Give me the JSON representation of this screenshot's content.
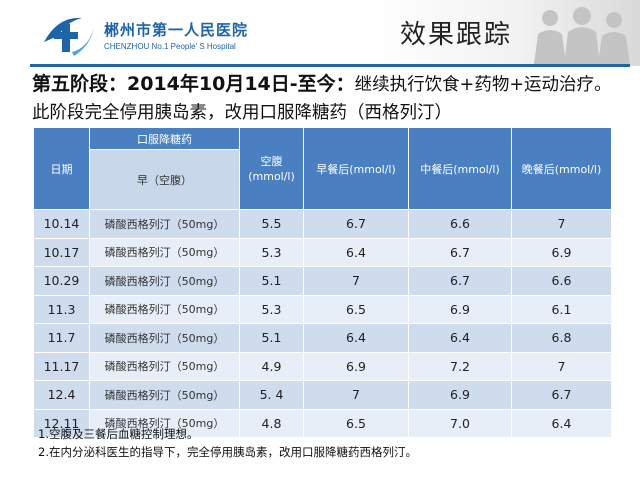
{
  "header": {
    "hospital_name_cn": "郴州市第一人民医院",
    "hospital_name_en": "CHENZHOU No.1 People' S Hospital",
    "page_title": "效果跟踪",
    "brand_color": "#1f63a8"
  },
  "heading": {
    "stage_label": "第五阶段：2014年10月14日-至今：",
    "stage_text": "继续执行饮食+药物+运动治疗。此阶段完全停用胰岛素，改用口服降糖药（西格列汀）"
  },
  "table": {
    "header_color": "#4a7fc1",
    "col_date": "日期",
    "col_oral_group": "口服降糖药",
    "col_oral_sub": "早（空腹）",
    "col_fasting": "空腹\n(mmol/l)",
    "col_after_breakfast": "早餐后(mmol/l)",
    "col_after_lunch": "中餐后(mmol/l)",
    "col_after_dinner": "晚餐后(mmol/l)",
    "rows": [
      {
        "date": "10.14",
        "drug": "磷酸西格列汀（50mg）",
        "fasting": "5.5",
        "breakfast": "6.7",
        "lunch": "6.6",
        "dinner": "7"
      },
      {
        "date": "10.17",
        "drug": "磷酸西格列汀（50mg）",
        "fasting": "5.3",
        "breakfast": "6.4",
        "lunch": "6.7",
        "dinner": "6.9"
      },
      {
        "date": "10.29",
        "drug": "磷酸西格列汀（50mg）",
        "fasting": "5.1",
        "breakfast": "7",
        "lunch": "6.7",
        "dinner": "6.6"
      },
      {
        "date": "11.3",
        "drug": "磷酸西格列汀（50mg）",
        "fasting": "5.3",
        "breakfast": "6.5",
        "lunch": "6.9",
        "dinner": "6.1"
      },
      {
        "date": "11.7",
        "drug": "磷酸西格列汀（50mg）",
        "fasting": "5.1",
        "breakfast": "6.4",
        "lunch": "6.4",
        "dinner": "6.8"
      },
      {
        "date": "11.17",
        "drug": "磷酸西格列汀（50mg）",
        "fasting": "4.9",
        "breakfast": "6.9",
        "lunch": "7.2",
        "dinner": "7"
      },
      {
        "date": "12.4",
        "drug": "磷酸西格列汀（50mg）",
        "fasting": "5. 4",
        "breakfast": "7",
        "lunch": "6.9",
        "dinner": "6.7"
      },
      {
        "date": "12.11",
        "drug": "磷酸西格列汀（50mg）",
        "fasting": "4.8",
        "breakfast": "6.5",
        "lunch": "7.0",
        "dinner": "6.4"
      }
    ]
  },
  "notes": [
    "1.空腹及三餐后血糖控制理想。",
    "2.在内分泌科医生的指导下，完全停用胰岛素，改用口服降糖药西格列汀。"
  ]
}
